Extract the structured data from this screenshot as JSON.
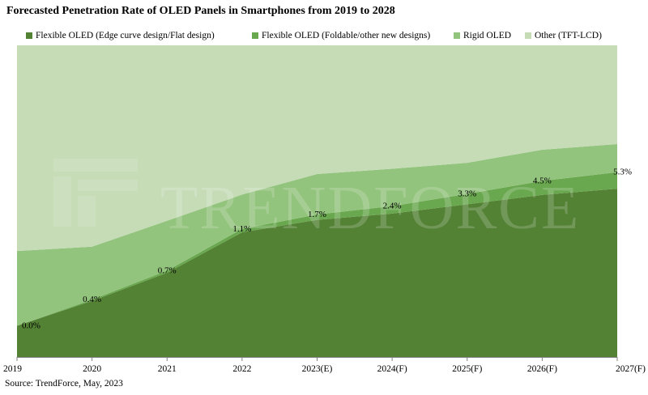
{
  "title": "Forecasted Penetration Rate of OLED Panels in Smartphones from 2019 to 2028",
  "source": "Source: TrendForce, May, 2023",
  "watermark": "TRENDFORCE",
  "chart_data": {
    "type": "area",
    "stacked": true,
    "categories": [
      "2019",
      "2020",
      "2021",
      "2022",
      "2023(E)",
      "2024(F)",
      "2025(F)",
      "2026(F)",
      "2027(F)"
    ],
    "series": [
      {
        "name": "Flexible OLED (Edge curve design/Flat design)",
        "color": "#548235",
        "values": [
          0.1,
          0.18,
          0.27,
          0.4,
          0.44,
          0.46,
          0.49,
          0.52,
          0.54
        ]
      },
      {
        "name": "Flexible OLED (Foldable/other new designs)",
        "color": "#6aa84f",
        "values": [
          0.0,
          0.004,
          0.007,
          0.011,
          0.017,
          0.024,
          0.033,
          0.045,
          0.053
        ]
      },
      {
        "name": "Rigid OLED",
        "color": "#93c47d",
        "values": [
          0.24,
          0.17,
          0.16,
          0.11,
          0.13,
          0.12,
          0.1,
          0.1,
          0.09
        ]
      },
      {
        "name": "Other (TFT-LCD)",
        "color": "#c5dcb7",
        "values": [
          0.66,
          0.646,
          0.563,
          0.479,
          0.413,
          0.396,
          0.377,
          0.335,
          0.317
        ]
      }
    ],
    "data_labels": {
      "series": "Flexible OLED (Foldable/other new designs)",
      "texts": [
        "0.0%",
        "0.4%",
        "0.7%",
        "1.1%",
        "1.7%",
        "2.4%",
        "3.3%",
        "4.5%",
        "5.3%"
      ]
    },
    "ylim": [
      0,
      1
    ],
    "legend_position": "top",
    "grid": false
  }
}
